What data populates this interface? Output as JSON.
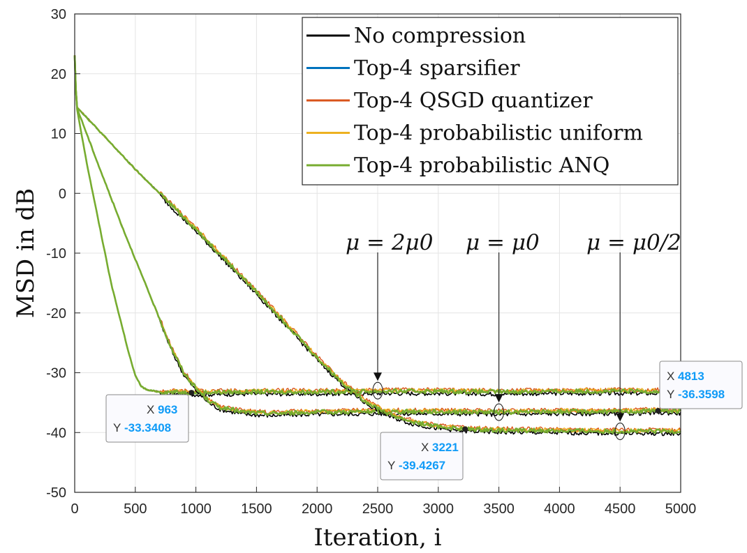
{
  "chart_data": {
    "type": "line",
    "xlabel": "Iteration, i",
    "ylabel": "MSD in dB",
    "xlim": [
      0,
      5000
    ],
    "ylim": [
      -50,
      30
    ],
    "xticks": [
      "0",
      "500",
      "1000",
      "1500",
      "2000",
      "2500",
      "3000",
      "3500",
      "4000",
      "4500",
      "5000"
    ],
    "yticks": [
      "-50",
      "-40",
      "-30",
      "-20",
      "-10",
      "0",
      "10",
      "20",
      "30"
    ],
    "grid": true,
    "legend_position": "top-right",
    "series": [
      {
        "name": "No compression",
        "color": "#000000"
      },
      {
        "name": "Top-4 sparsifier",
        "color": "#0072BD"
      },
      {
        "name": "Top-4 QSGD quantizer",
        "color": "#D95319"
      },
      {
        "name": "Top-4 probabilistic uniform",
        "color": "#EDB120"
      },
      {
        "name": "Top-4 probabilistic ANQ",
        "color": "#77AC30"
      }
    ],
    "curves": [
      {
        "label": "μ = 2μ0",
        "points": [
          [
            0,
            23
          ],
          [
            15,
            14.5
          ],
          [
            100,
            5
          ],
          [
            200,
            -5
          ],
          [
            300,
            -15
          ],
          [
            400,
            -23
          ],
          [
            450,
            -27
          ],
          [
            500,
            -30.5
          ],
          [
            550,
            -32.3
          ],
          [
            600,
            -32.9
          ],
          [
            700,
            -33.2
          ],
          [
            963,
            -33.3
          ],
          [
            1500,
            -33.2
          ],
          [
            2000,
            -33.2
          ],
          [
            2500,
            -33.1
          ],
          [
            3000,
            -33.1
          ],
          [
            3500,
            -33.2
          ],
          [
            4000,
            -33.1
          ],
          [
            4500,
            -33.1
          ],
          [
            5000,
            -33.1
          ]
        ]
      },
      {
        "label": "μ = μ0",
        "points": [
          [
            0,
            23
          ],
          [
            15,
            14.5
          ],
          [
            200,
            4.5
          ],
          [
            400,
            -6
          ],
          [
            600,
            -16
          ],
          [
            700,
            -21
          ],
          [
            800,
            -26
          ],
          [
            900,
            -30
          ],
          [
            1000,
            -32.6
          ],
          [
            1100,
            -34.6
          ],
          [
            1200,
            -35.8
          ],
          [
            1400,
            -36.6
          ],
          [
            1600,
            -36.8
          ],
          [
            2000,
            -36.6
          ],
          [
            2500,
            -36.5
          ],
          [
            3000,
            -36.5
          ],
          [
            3500,
            -36.6
          ],
          [
            4000,
            -36.5
          ],
          [
            4500,
            -36.5
          ],
          [
            4813,
            -36.36
          ],
          [
            5000,
            -36.4
          ]
        ]
      },
      {
        "label": "μ = μ0/2",
        "points": [
          [
            0,
            23
          ],
          [
            15,
            14.5
          ],
          [
            500,
            4
          ],
          [
            1000,
            -6
          ],
          [
            1500,
            -16.5
          ],
          [
            1800,
            -23
          ],
          [
            2000,
            -27.5
          ],
          [
            2200,
            -31.5
          ],
          [
            2400,
            -34.8
          ],
          [
            2600,
            -37
          ],
          [
            2800,
            -38.3
          ],
          [
            3000,
            -39
          ],
          [
            3221,
            -39.43
          ],
          [
            3500,
            -39.6
          ],
          [
            4000,
            -39.7
          ],
          [
            4500,
            -39.8
          ],
          [
            5000,
            -39.8
          ]
        ]
      }
    ],
    "annotations": [
      {
        "text": "μ = 2μ0",
        "x": 2500,
        "y": -33
      },
      {
        "text": "μ = μ0",
        "x": 3500,
        "y": -36.6
      },
      {
        "text": "μ = μ0/2",
        "x": 4500,
        "y": -39.8
      }
    ],
    "datatips": [
      {
        "x_key": "X",
        "x": "963",
        "y_key": "Y",
        "y": "-33.3408"
      },
      {
        "x_key": "X",
        "x": "3221",
        "y_key": "Y",
        "y": "-39.4267"
      },
      {
        "x_key": "X",
        "x": "4813",
        "y_key": "Y",
        "y": "-36.3598"
      }
    ],
    "datatip_value_color": "#0F9BF7",
    "curve_color": "#77AC30"
  }
}
